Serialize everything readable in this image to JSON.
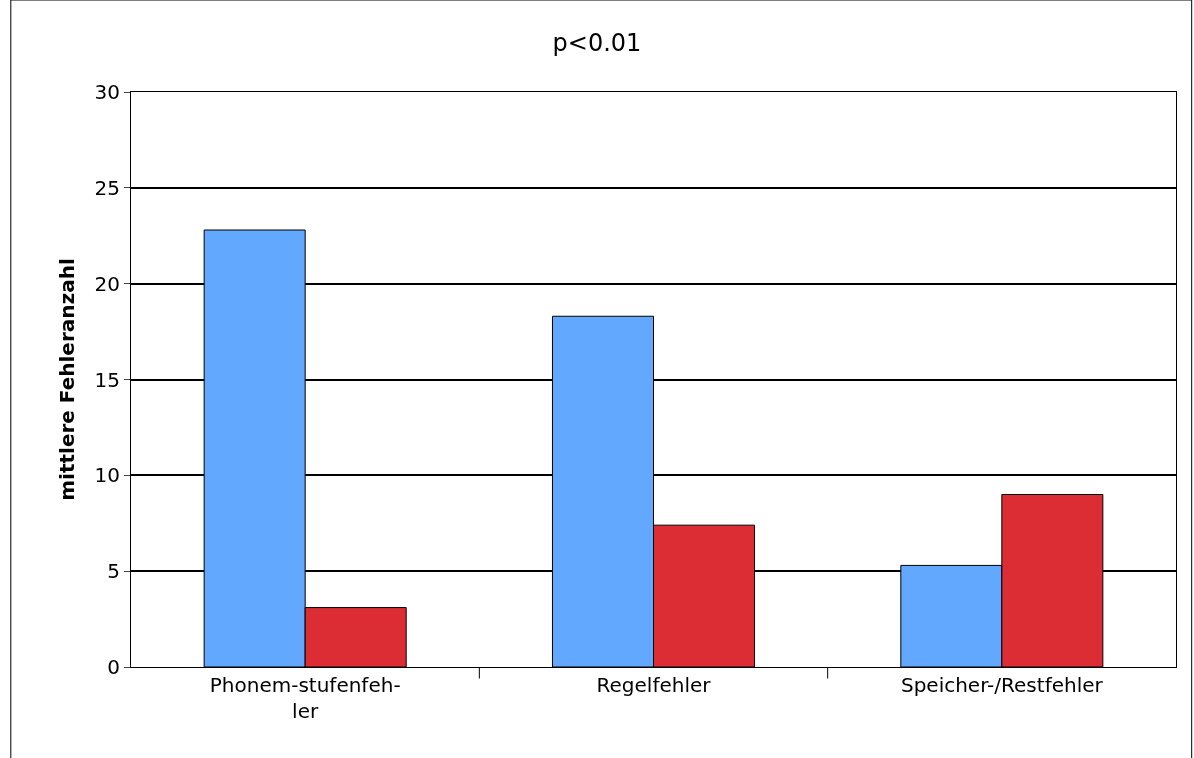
{
  "chart_data": {
    "type": "bar",
    "title": "p<0.01",
    "ylabel": "mittlere Fehleranzahl",
    "categories": [
      "Phonem-stufenfeh-\nler",
      "Regelfehler",
      "Speicher-/Restfehler"
    ],
    "series": [
      {
        "color": "#63a8ff",
        "values": [
          22.8,
          18.3,
          5.3
        ]
      },
      {
        "color": "#dc2d34",
        "values": [
          3.1,
          7.4,
          9.0
        ]
      }
    ],
    "ylim": [
      0,
      30
    ],
    "yticks": [
      0,
      5,
      10,
      15,
      20,
      25,
      30
    ],
    "grid": "y"
  }
}
